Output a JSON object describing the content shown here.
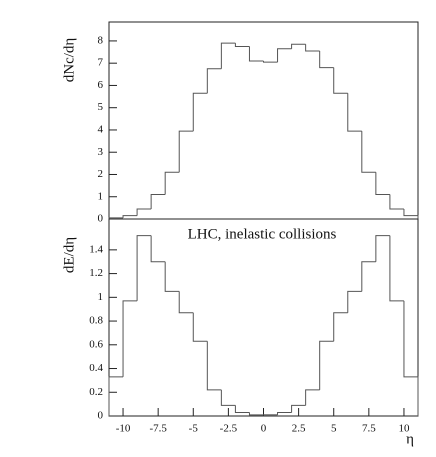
{
  "chart_data": [
    {
      "type": "histogram",
      "ylabel": "dNc/dη",
      "bins": [
        -11,
        -10,
        -9,
        -8,
        -7,
        -6,
        -5,
        -4,
        -3,
        -2,
        -1,
        0,
        1,
        2,
        3,
        4,
        5,
        6,
        7,
        8,
        9,
        10,
        11
      ],
      "values": [
        0.05,
        0.15,
        0.45,
        1.1,
        2.1,
        3.95,
        5.65,
        6.75,
        7.9,
        7.75,
        7.1,
        7.05,
        7.65,
        7.85,
        7.55,
        6.8,
        5.65,
        3.95,
        2.1,
        1.1,
        0.45,
        0.15
      ],
      "xlim": [
        -11,
        11
      ],
      "ylim": [
        0,
        8.85
      ],
      "yticks": [
        0,
        1,
        2,
        3,
        4,
        5,
        6,
        7,
        8
      ],
      "color": "#555555"
    },
    {
      "type": "histogram",
      "ylabel": "dE/dη",
      "xlabel": "η",
      "annotation": "LHC, inelastic collisions",
      "bins": [
        -11,
        -10,
        -9,
        -8,
        -7,
        -6,
        -5,
        -4,
        -3,
        -2,
        -1,
        0,
        1,
        2,
        3,
        4,
        5,
        6,
        7,
        8,
        9,
        10,
        11
      ],
      "values": [
        0.33,
        0.97,
        1.52,
        1.3,
        1.05,
        0.87,
        0.63,
        0.22,
        0.09,
        0.03,
        0.01,
        0.01,
        0.03,
        0.09,
        0.22,
        0.63,
        0.87,
        1.05,
        1.3,
        1.52,
        0.97,
        0.33
      ],
      "xlim": [
        -11,
        11
      ],
      "ylim": [
        0,
        1.66
      ],
      "yticks": [
        0,
        0.2,
        0.4,
        0.6,
        0.8,
        1,
        1.2,
        1.4
      ],
      "xticks": [
        -10,
        -7.5,
        -5,
        -2.5,
        0,
        2.5,
        5,
        7.5,
        10
      ],
      "color": "#555555"
    }
  ]
}
